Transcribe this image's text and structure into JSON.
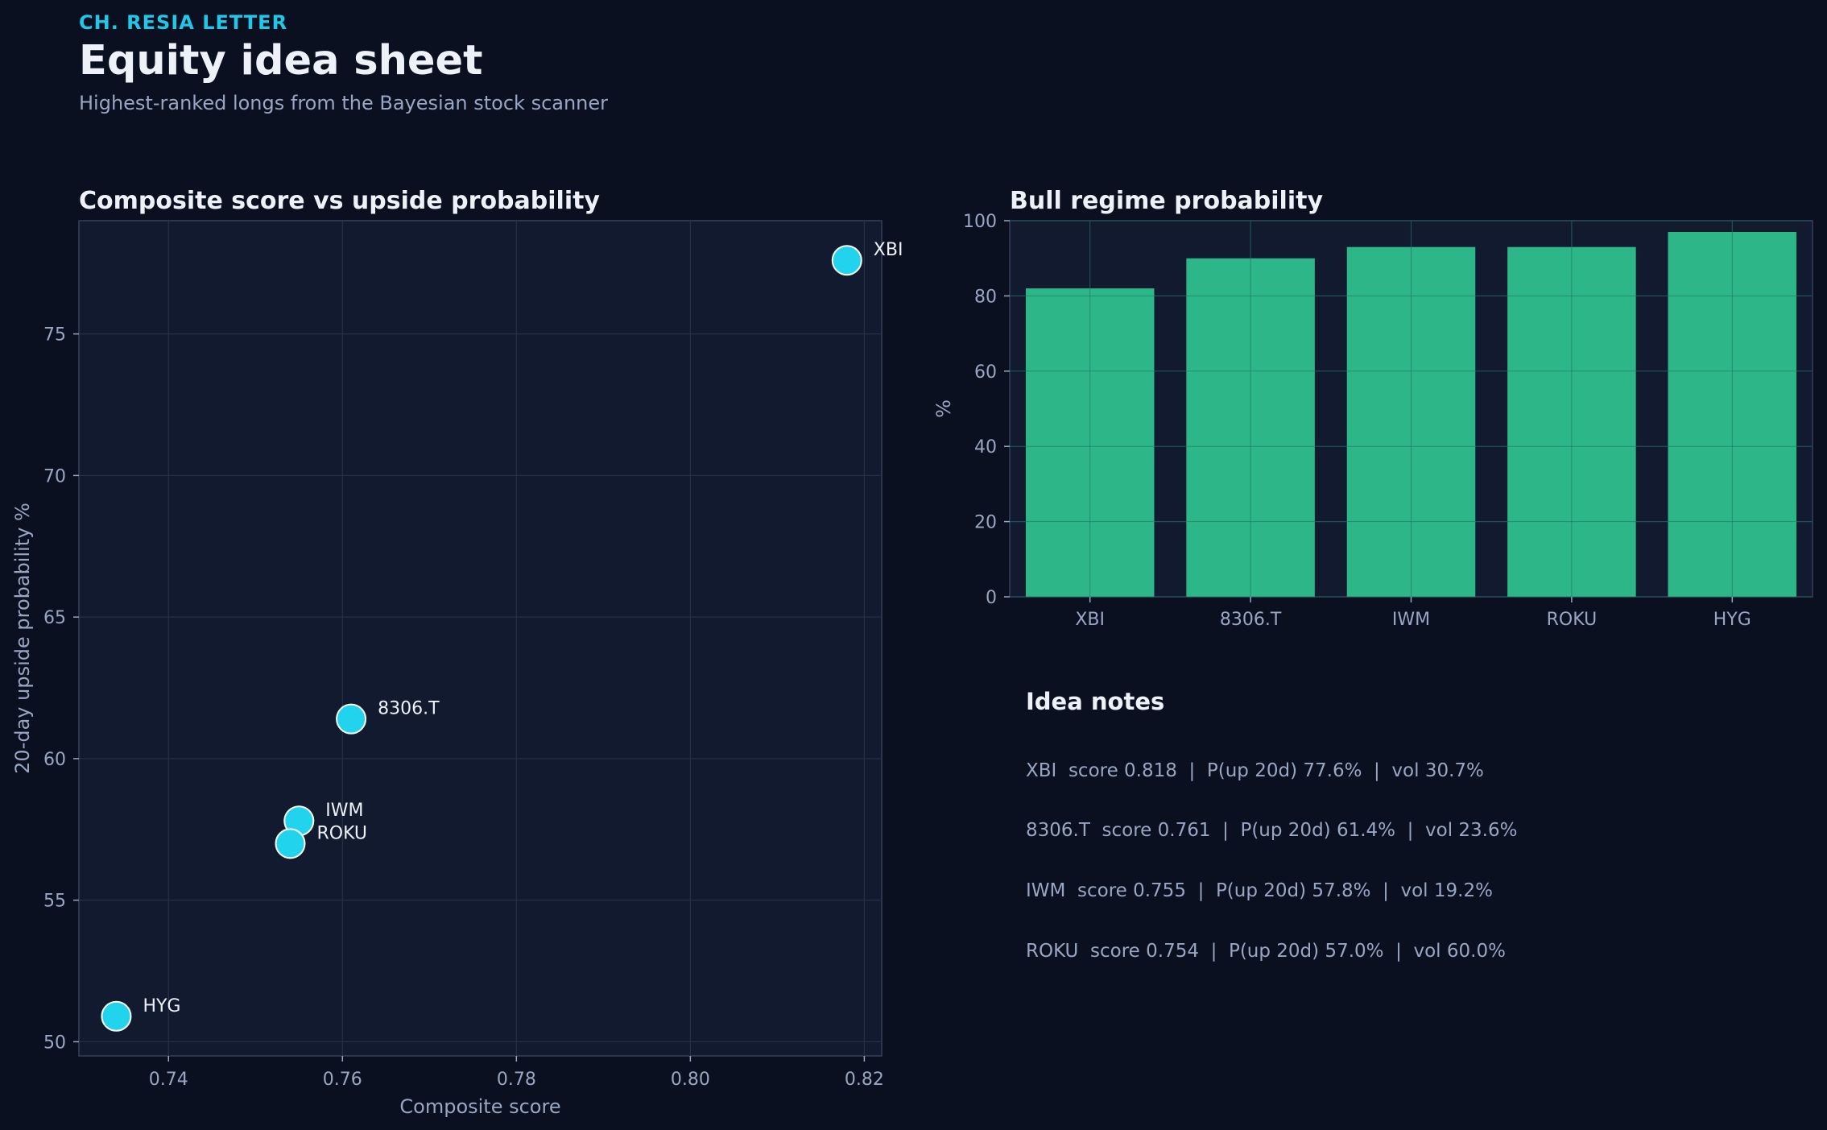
{
  "header": {
    "kicker": "CH. RESIA LETTER",
    "title": "Equity idea sheet",
    "subtitle": "Highest-ranked longs from the Bayesian stock scanner"
  },
  "colors": {
    "background": "#0a1020",
    "panel": "#111a2e",
    "scatter_point": "#22d3ee",
    "bar": "#2db789",
    "grid": "#243149",
    "axis_text": "#98a6c4"
  },
  "chart_data": [
    {
      "type": "scatter",
      "title": "Composite score vs upside probability",
      "xlabel": "Composite score",
      "ylabel": "20-day upside probability %",
      "xlim": [
        0.7297,
        0.822
      ],
      "ylim": [
        49.5,
        79.0
      ],
      "xticks": [
        0.74,
        0.76,
        0.78,
        0.8,
        0.82
      ],
      "xtick_labels": [
        "0.74",
        "0.76",
        "0.78",
        "0.80",
        "0.82"
      ],
      "yticks": [
        50,
        55,
        60,
        65,
        70,
        75
      ],
      "ytick_labels": [
        "50",
        "55",
        "60",
        "65",
        "70",
        "75"
      ],
      "grid": true,
      "points": [
        {
          "label": "XBI",
          "x": 0.818,
          "y": 77.6
        },
        {
          "label": "8306.T",
          "x": 0.761,
          "y": 61.4
        },
        {
          "label": "IWM",
          "x": 0.755,
          "y": 57.8
        },
        {
          "label": "ROKU",
          "x": 0.754,
          "y": 57.0
        },
        {
          "label": "HYG",
          "x": 0.734,
          "y": 50.9
        }
      ]
    },
    {
      "type": "bar",
      "title": "Bull regime probability",
      "xlabel": "",
      "ylabel": "%",
      "ylim": [
        0,
        100
      ],
      "yticks": [
        0,
        20,
        40,
        60,
        80,
        100
      ],
      "ytick_labels": [
        "0",
        "20",
        "40",
        "60",
        "80",
        "100"
      ],
      "grid": true,
      "categories": [
        "XBI",
        "8306.T",
        "IWM",
        "ROKU",
        "HYG"
      ],
      "values": [
        82,
        90,
        93,
        93,
        97
      ]
    }
  ],
  "notes": {
    "title": "Idea notes",
    "items": [
      "XBI  score 0.818  |  P(up 20d) 77.6%  |  vol 30.7%",
      "8306.T  score 0.761  |  P(up 20d) 61.4%  |  vol 23.6%",
      "IWM  score 0.755  |  P(up 20d) 57.8%  |  vol 19.2%",
      "ROKU  score 0.754  |  P(up 20d) 57.0%  |  vol 60.0%"
    ]
  }
}
